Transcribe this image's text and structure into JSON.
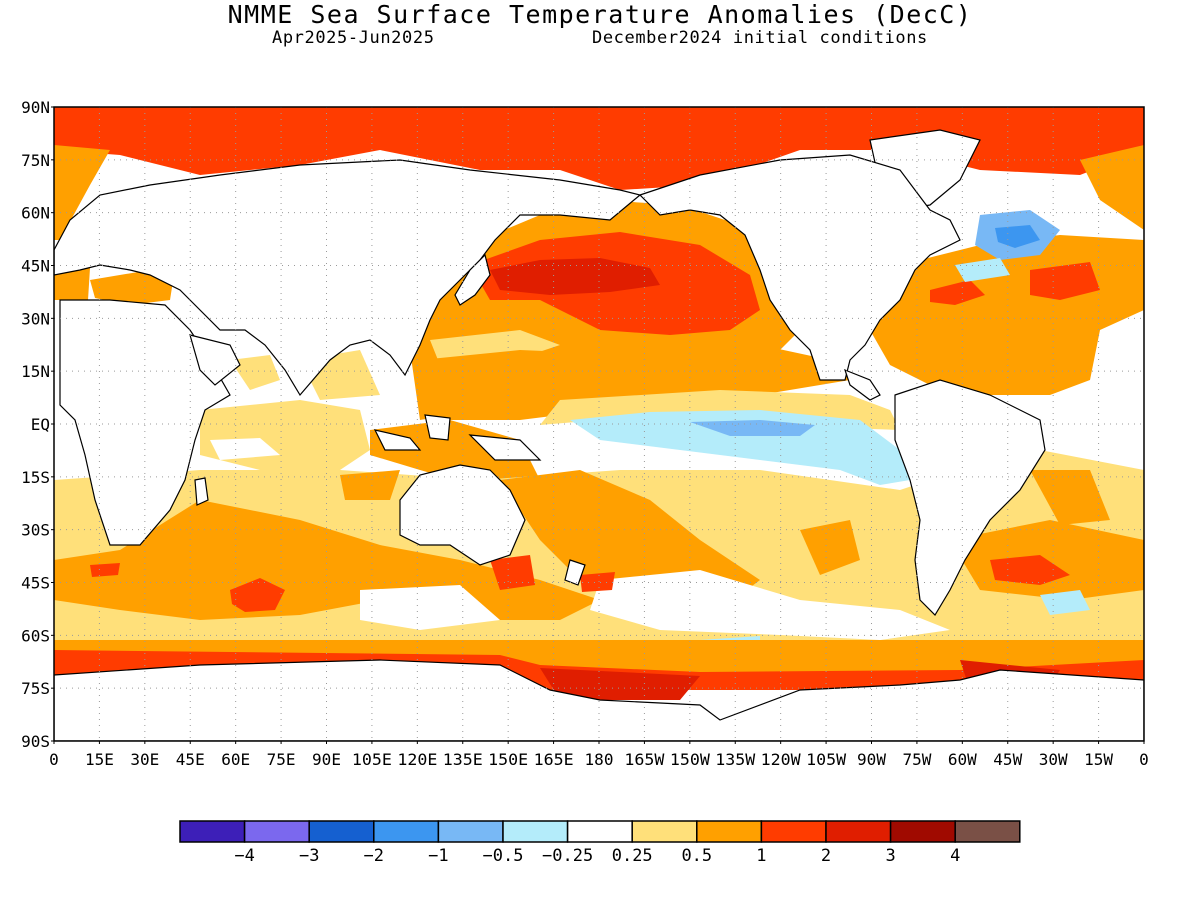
{
  "header": {
    "title": "NMME Sea Surface Temperature Anomalies (DecC)",
    "period": "Apr2025-Jun2025",
    "init": "December2024 initial conditions"
  },
  "axes": {
    "lat_ticks": [
      "90N",
      "75N",
      "60N",
      "45N",
      "30N",
      "15N",
      "EQ",
      "15S",
      "30S",
      "45S",
      "60S",
      "75S",
      "90S"
    ],
    "lon_ticks": [
      "0",
      "15E",
      "30E",
      "45E",
      "60E",
      "75E",
      "90E",
      "105E",
      "120E",
      "135E",
      "150E",
      "165E",
      "180",
      "165W",
      "150W",
      "135W",
      "120W",
      "105W",
      "90W",
      "75W",
      "60W",
      "45W",
      "30W",
      "15W",
      "0"
    ]
  },
  "colorbar": {
    "colors": [
      "#3d1fb8",
      "#7b68ee",
      "#1560d0",
      "#3c96f0",
      "#78b8f5",
      "#b4ecfa",
      "#ffffff",
      "#ffe07a",
      "#ffa000",
      "#ff3c00",
      "#e01e00",
      "#a00a00",
      "#7a5046"
    ],
    "labels": [
      "-4",
      "-3",
      "-2",
      "-1",
      "-0.5",
      "-0.25",
      "0.25",
      "0.5",
      "1",
      "2",
      "3",
      "4"
    ]
  },
  "colors": {
    "land": "#ffffff",
    "coast": "#000000",
    "grid": "#9a9a9a"
  }
}
